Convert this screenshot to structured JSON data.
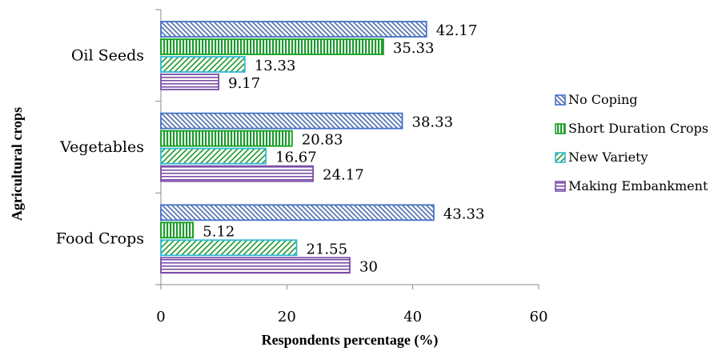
{
  "chart_data": {
    "type": "bar",
    "orientation": "horizontal",
    "categories": [
      "Oil Seeds",
      "Vegetables",
      "Food Crops"
    ],
    "series": [
      {
        "name": "No Coping",
        "values": [
          42.17,
          38.33,
          43.33
        ],
        "labels": [
          "42.17",
          "38.33",
          "43.33"
        ],
        "color": "#4f6fb0",
        "pattern": "diagonal"
      },
      {
        "name": "Short Duration Crops",
        "values": [
          35.33,
          20.83,
          5.12
        ],
        "labels": [
          "35.33",
          "20.83",
          "5.12"
        ],
        "color": "#1e9a2c",
        "pattern": "vertical"
      },
      {
        "name": "New Variety",
        "values": [
          13.33,
          16.67,
          21.55
        ],
        "labels": [
          "13.33",
          "16.67",
          "21.55"
        ],
        "color": "#2fb8d8",
        "pattern": "diagonal-up"
      },
      {
        "name": "Making Embankment",
        "values": [
          9.17,
          24.17,
          30
        ],
        "labels": [
          "9.17",
          "24.17",
          "30"
        ],
        "color": "#7a4ea8",
        "pattern": "horizontal"
      }
    ],
    "xlabel": "Respondents percentage (%)",
    "ylabel": "Agricultural crops",
    "xlim": [
      0,
      60
    ],
    "xticks": [
      "0",
      "20",
      "40",
      "60"
    ],
    "grid": false,
    "legend_position": "right"
  }
}
